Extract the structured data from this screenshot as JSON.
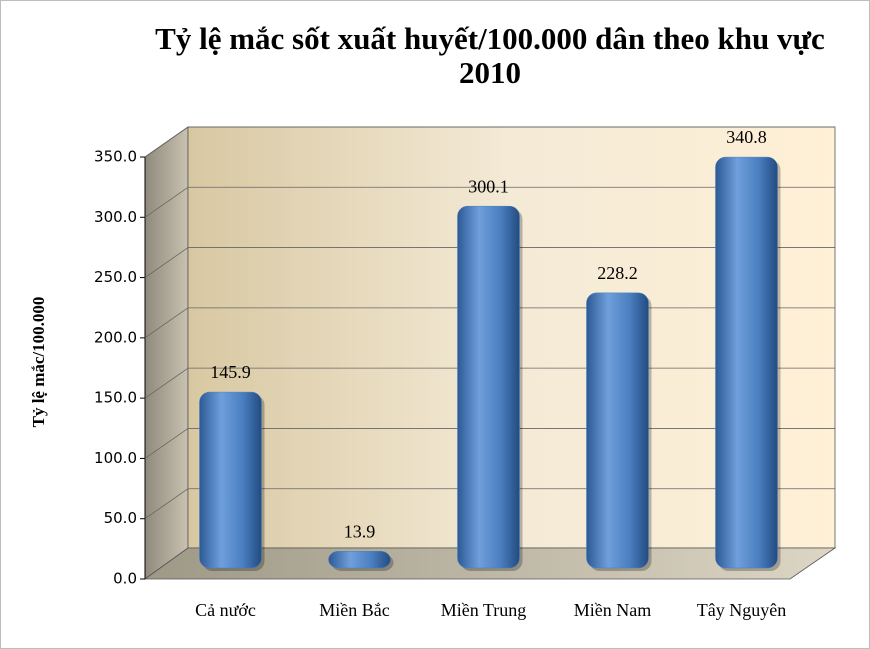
{
  "chart_data": {
    "type": "bar",
    "title": "Tỷ lệ mắc sốt xuất huyết/100.000 dân theo khu vực 2010",
    "y_label": "Tỷ lệ mắc/100.000",
    "categories": [
      "Cả nước",
      "Miền Bắc",
      "Miền Trung",
      "Miền Nam",
      "Tây Nguyên"
    ],
    "values": [
      145.9,
      13.9,
      300.1,
      228.2,
      340.8
    ],
    "color": "#4a7ebf",
    "ylim": [
      0,
      350
    ],
    "yticks": [
      {
        "value": 0,
        "label": "0.0"
      },
      {
        "value": 50,
        "label": "50.0"
      },
      {
        "value": 100,
        "label": "100.0"
      },
      {
        "value": 150,
        "label": "150.0"
      },
      {
        "value": 200,
        "label": "200.0"
      },
      {
        "value": 250,
        "label": "250.0"
      },
      {
        "value": 300,
        "label": "300.0"
      },
      {
        "value": 350,
        "label": "350.0"
      }
    ],
    "grid": true
  }
}
